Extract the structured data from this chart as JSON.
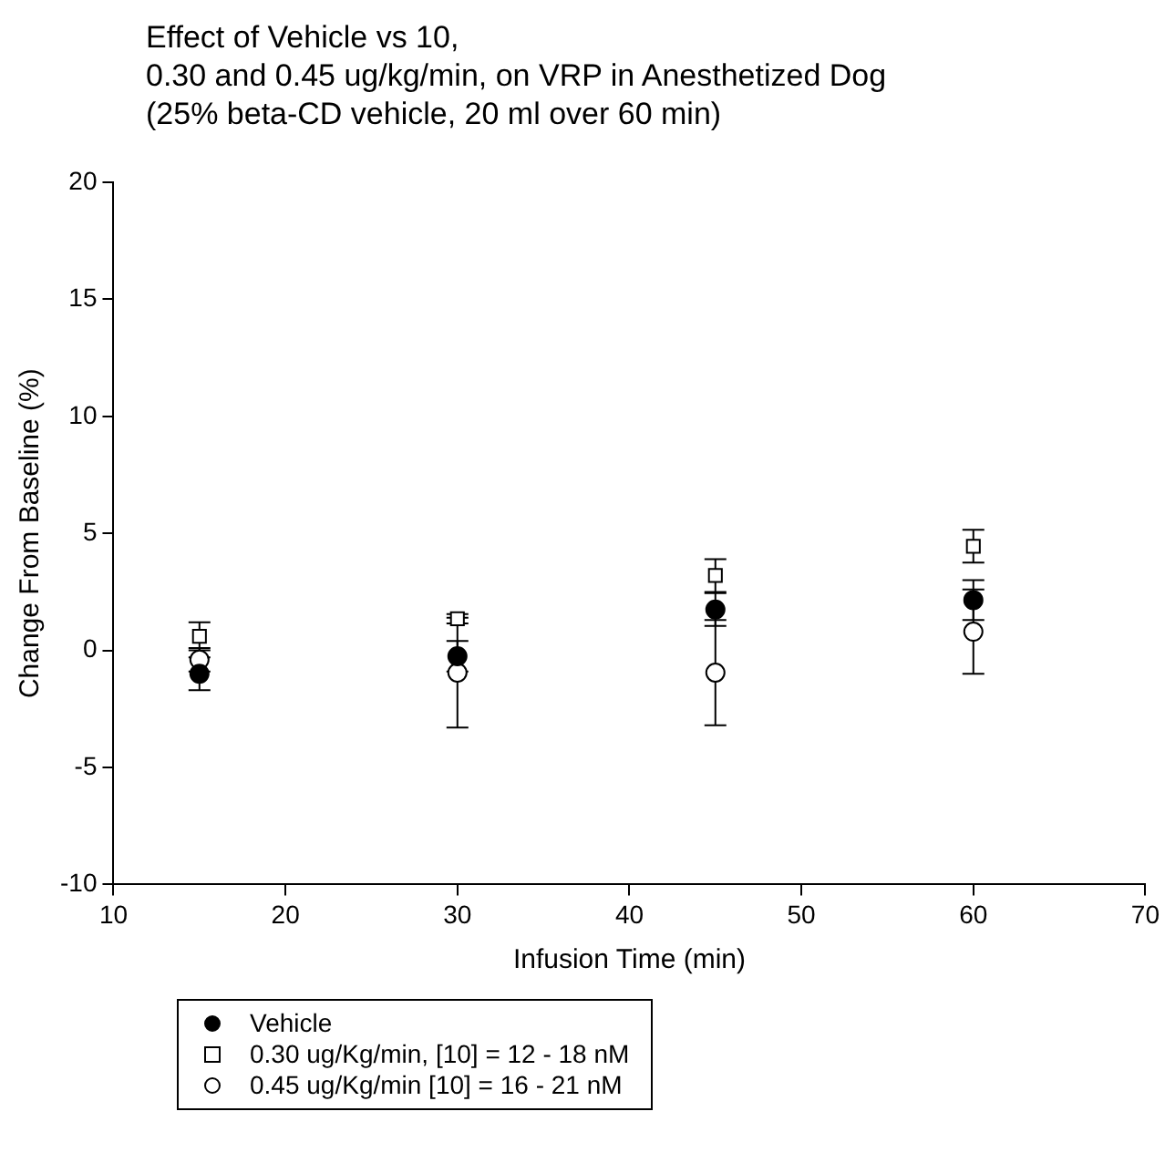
{
  "chart_data": {
    "type": "scatter",
    "title": "Effect of Vehicle vs 10,\n0.30 and 0.45 ug/kg/min, on VRP in Anesthetized Dog\n(25% beta-CD vehicle, 20 ml over 60 min)",
    "xlabel": "Infusion Time (min)",
    "ylabel": "Change From Baseline (%)",
    "x": [
      15,
      30,
      45,
      60
    ],
    "series": [
      {
        "name": "Vehicle",
        "color": "#000000",
        "marker": "circle",
        "values": [
          -1.0,
          -0.25,
          1.75,
          2.15
        ],
        "errors": [
          0.7,
          0.65,
          0.7,
          0.85
        ]
      },
      {
        "name": "0.30 ug/Kg/min, [10] = 12 - 18 nM",
        "color": "#ffffff",
        "marker": "square",
        "values": [
          0.6,
          1.35,
          3.2,
          4.45
        ],
        "errors": [
          0.6,
          0.2,
          0.7,
          0.7
        ]
      },
      {
        "name": "0.45 ug/Kg/min [10] = 16 - 21 nM",
        "color": "#ffffff",
        "marker": "circle",
        "values": [
          -0.4,
          -0.95,
          -0.95,
          0.8
        ],
        "errors": [
          0.5,
          2.35,
          2.25,
          1.8
        ]
      }
    ],
    "xlim": [
      10,
      70
    ],
    "xticks": [
      10,
      20,
      30,
      40,
      50,
      60,
      70
    ],
    "ylim": [
      -10,
      20
    ],
    "yticks": [
      -10,
      -5,
      0,
      5,
      10,
      15,
      20
    ],
    "grid": false,
    "legend": "bottom left"
  }
}
